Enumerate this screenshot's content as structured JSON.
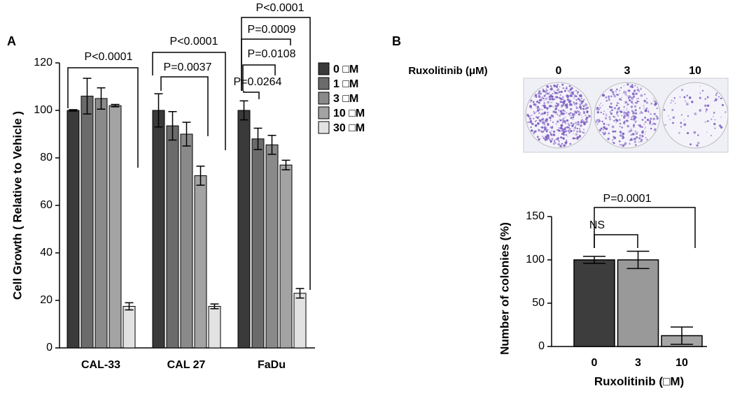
{
  "panels": [
    "A",
    "B"
  ],
  "photo": {
    "label": "Ruxolitinib (μM)",
    "wells": [
      "0",
      "3",
      "10"
    ]
  },
  "chart_data": [
    {
      "type": "bar",
      "ylabel": "Cell Growth ( Relative to Vehicle )",
      "categories": [
        "CAL-33",
        "CAL 27",
        "FaDu"
      ],
      "series": [
        {
          "name": "0 □M",
          "color": "#3a3a3a",
          "values": [
            100,
            100,
            100
          ],
          "errors": [
            0.3,
            7,
            4
          ]
        },
        {
          "name": "1 □M",
          "color": "#6b6b6b",
          "values": [
            106,
            93.5,
            88
          ],
          "errors": [
            7.5,
            6,
            4.5
          ]
        },
        {
          "name": "3 □M",
          "color": "#8a8a8a",
          "values": [
            105,
            90,
            85.5
          ],
          "errors": [
            4.5,
            5,
            4
          ]
        },
        {
          "name": "10 □M",
          "color": "#a3a3a3",
          "values": [
            102,
            72.5,
            77
          ],
          "errors": [
            0.5,
            4,
            2
          ]
        },
        {
          "name": "30 □M",
          "color": "#e2e2e2",
          "values": [
            17.5,
            17.5,
            23
          ],
          "errors": [
            1.5,
            1,
            2
          ]
        }
      ],
      "ylim": [
        0,
        120
      ],
      "yticks": [
        0,
        20,
        40,
        60,
        80,
        100,
        120
      ],
      "annotations": [
        "P<0.0001",
        "P<0.0001",
        "P=0.0037",
        "P<0.0001",
        "P=0.0009",
        "P=0.0108",
        "P=0.0264"
      ]
    },
    {
      "type": "bar",
      "xlabel": "Ruxolitinib (□M)",
      "ylabel": "Number of colonies (%)",
      "categories": [
        "0",
        "3",
        "10"
      ],
      "values": [
        100,
        100,
        12.5
      ],
      "errors": [
        4,
        10,
        10
      ],
      "colors": [
        "#3d3d3d",
        "#999999",
        "#a5a5a5"
      ],
      "ylim": [
        0,
        150
      ],
      "yticks": [
        0,
        50,
        100,
        150
      ],
      "annotations": [
        "P=0.0001",
        "NS"
      ]
    }
  ]
}
